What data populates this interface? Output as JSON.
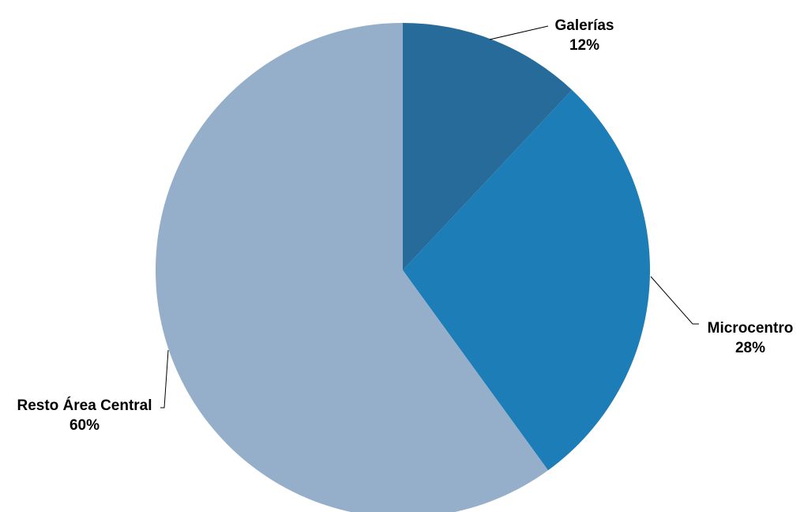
{
  "chart_data": {
    "type": "pie",
    "title": "",
    "start_angle_deg": 0,
    "direction": "clockwise",
    "slices": [
      {
        "label": "Galerías",
        "value": 12,
        "value_label": "12%",
        "color": "#266B9A"
      },
      {
        "label": "Microcentro",
        "value": 28,
        "value_label": "28%",
        "color": "#1C7DB7"
      },
      {
        "label": "Resto Área Central",
        "value": 60,
        "value_label": "60%",
        "color": "#95AFCB"
      }
    ]
  }
}
